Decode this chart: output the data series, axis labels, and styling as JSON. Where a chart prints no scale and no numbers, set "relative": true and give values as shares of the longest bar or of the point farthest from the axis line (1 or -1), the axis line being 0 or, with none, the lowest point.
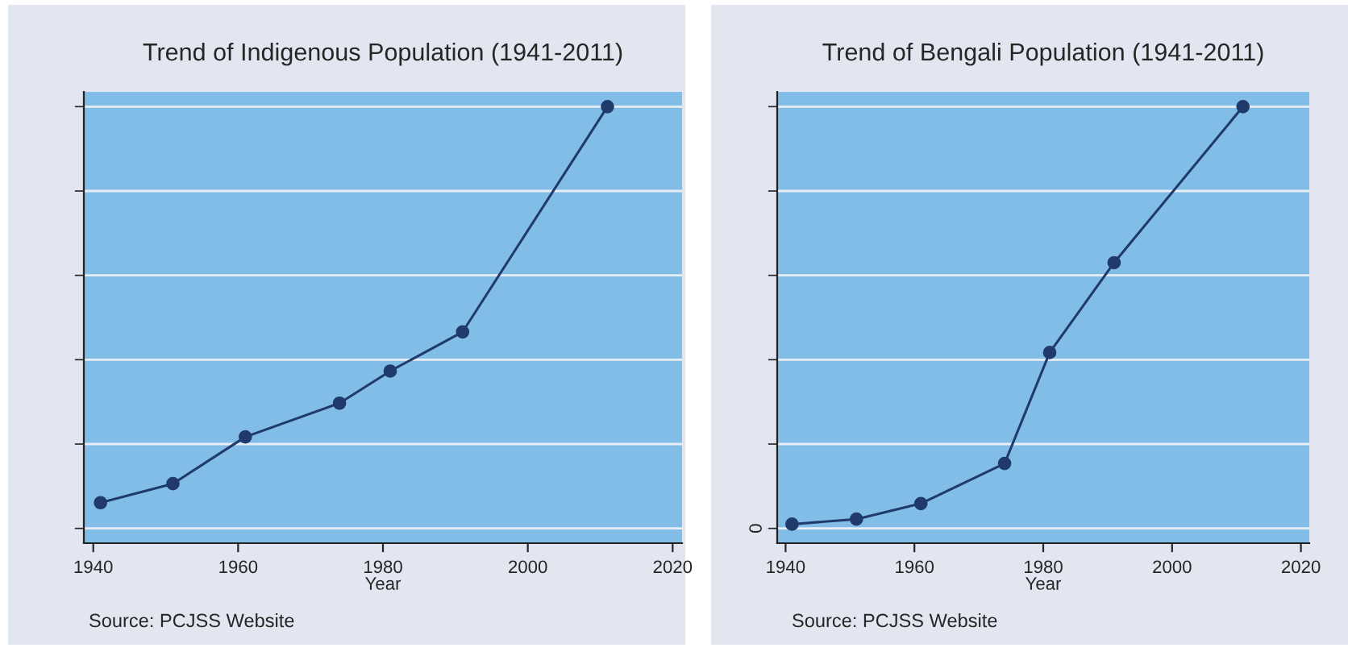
{
  "chart_data": [
    {
      "type": "line",
      "title": "Trend of Indigenous Population (1941-2011)",
      "xlabel": "Year",
      "relative": true,
      "x": [
        1941,
        1951,
        1961,
        1974,
        1981,
        1991,
        2011
      ],
      "xlim": [
        1938.7,
        2021.3
      ],
      "xticks": [
        1940,
        1960,
        1980,
        2000,
        2020
      ],
      "series": [
        {
          "color": "#1f3a6b",
          "values": [
            0.061,
            0.106,
            0.217,
            0.297,
            0.373,
            0.466,
            1
          ]
        }
      ],
      "marker": "circle",
      "grid": "y",
      "tick_labels": "x",
      "annotations": [
        "Source: PCJSS Website"
      ]
    },
    {
      "type": "line",
      "title": "Trend of Bengali Population (1941-2011)",
      "xlabel": "Year",
      "relative": true,
      "x": [
        1941,
        1951,
        1961,
        1974,
        1981,
        1991,
        2011
      ],
      "xlim": [
        1938.7,
        2021.3
      ],
      "xticks": [
        1940,
        1960,
        1980,
        2000,
        2020
      ],
      "series": [
        {
          "color": "#1f3a6b",
          "values": [
            0.01,
            0.022,
            0.059,
            0.154,
            0.417,
            0.63,
            1
          ]
        }
      ],
      "marker": "circle",
      "grid": "y",
      "tick_labels": "x",
      "annotations": [
        "Source: PCJSS Website",
        "0"
      ]
    }
  ]
}
